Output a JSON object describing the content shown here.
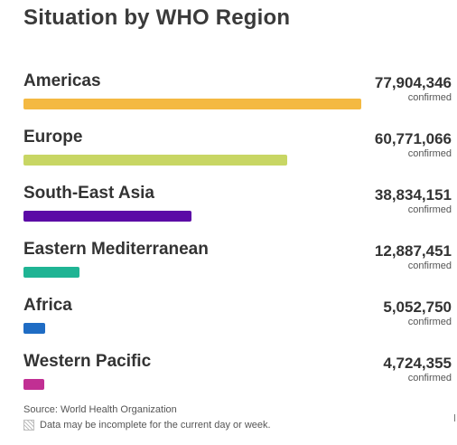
{
  "title": "Situation by WHO Region",
  "unit_label": "confirmed",
  "max_count": 77904346,
  "regions": [
    {
      "name": "Americas",
      "count": "77,904,346",
      "value": 77904346,
      "color": "#f4b942"
    },
    {
      "name": "Europe",
      "count": "60,771,066",
      "value": 60771066,
      "color": "#c8d664"
    },
    {
      "name": "South-East Asia",
      "count": "38,834,151",
      "value": 38834151,
      "color": "#5b0aa6"
    },
    {
      "name": "Eastern Mediterranean",
      "count": "12,887,451",
      "value": 12887451,
      "color": "#1fb494"
    },
    {
      "name": "Africa",
      "count": "5,052,750",
      "value": 5052750,
      "color": "#1f6cc4"
    },
    {
      "name": "Western Pacific",
      "count": "4,724,355",
      "value": 4724355,
      "color": "#c12f93"
    }
  ],
  "footer": {
    "source": "Source: World Health Organization",
    "note": "Data may be incomplete for the current day or week."
  }
}
